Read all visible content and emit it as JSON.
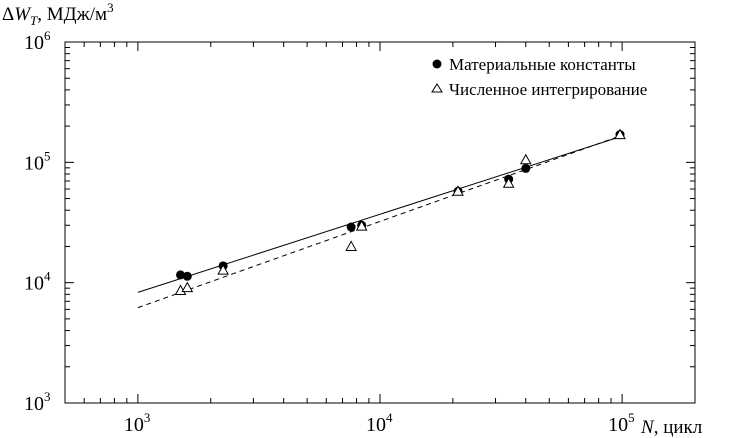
{
  "chart_data": {
    "type": "scatter",
    "title": "",
    "xscale": "log",
    "yscale": "log",
    "xlim": [
      500,
      200000
    ],
    "ylim": [
      1000,
      1000000
    ],
    "x_axis": {
      "ticks": [
        {
          "value": 1000,
          "base": "10",
          "exp": "3"
        },
        {
          "value": 10000,
          "base": "10",
          "exp": "4"
        },
        {
          "value": 100000,
          "base": "10",
          "exp": "5"
        }
      ],
      "label_prefix": "N",
      "label_suffix": ", цикл"
    },
    "y_axis": {
      "ticks": [
        {
          "value": 1000,
          "base": "10",
          "exp": "3"
        },
        {
          "value": 10000,
          "base": "10",
          "exp": "4"
        },
        {
          "value": 100000,
          "base": "10",
          "exp": "5"
        },
        {
          "value": 1000000,
          "base": "10",
          "exp": "6"
        }
      ],
      "label_delta": "Δ",
      "label_var": "W",
      "label_sub": "T",
      "label_unit": ", МДж/м",
      "label_unit_sup": "3"
    },
    "legend_position": "top-right",
    "series": [
      {
        "name": "Материальные константы",
        "marker": "filled-circle",
        "points": [
          {
            "x": 1500,
            "y": 11600
          },
          {
            "x": 1600,
            "y": 11300
          },
          {
            "x": 2250,
            "y": 13800
          },
          {
            "x": 7600,
            "y": 29000
          },
          {
            "x": 8400,
            "y": 30000
          },
          {
            "x": 21000,
            "y": 57500
          },
          {
            "x": 34000,
            "y": 72500
          },
          {
            "x": 40000,
            "y": 89000
          },
          {
            "x": 98000,
            "y": 170000
          }
        ],
        "fit": {
          "style": "solid",
          "from": {
            "x": 1000,
            "y": 8300
          },
          "to": {
            "x": 100000,
            "y": 165000
          }
        }
      },
      {
        "name": "Численное интегрирование",
        "marker": "open-triangle",
        "points": [
          {
            "x": 1500,
            "y": 8600
          },
          {
            "x": 1600,
            "y": 9100
          },
          {
            "x": 2250,
            "y": 12700
          },
          {
            "x": 7600,
            "y": 20000
          },
          {
            "x": 8400,
            "y": 29500
          },
          {
            "x": 21000,
            "y": 57500
          },
          {
            "x": 34000,
            "y": 67000
          },
          {
            "x": 40000,
            "y": 105000
          },
          {
            "x": 98000,
            "y": 170000
          }
        ],
        "fit": {
          "style": "dashed",
          "from": {
            "x": 1000,
            "y": 6200
          },
          "to": {
            "x": 100000,
            "y": 168000
          }
        }
      }
    ]
  }
}
